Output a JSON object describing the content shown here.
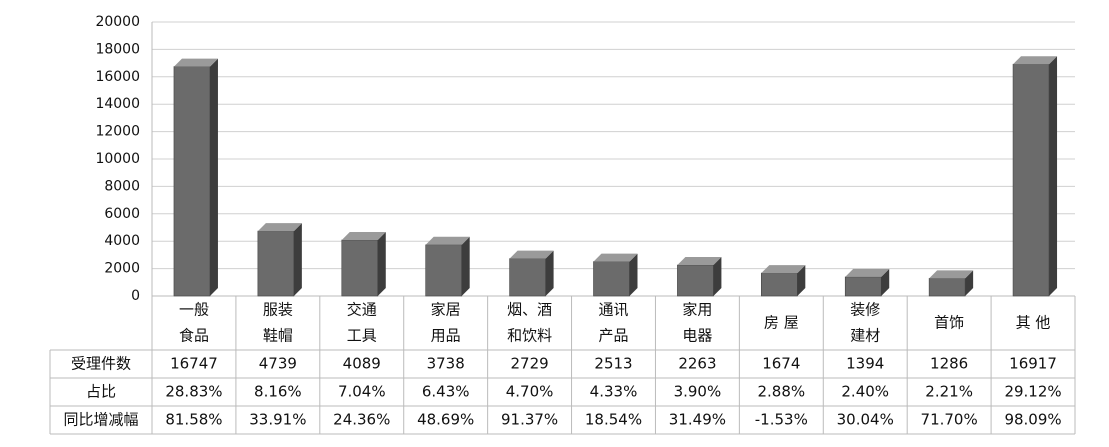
{
  "chart_data": {
    "type": "bar",
    "categories": [
      [
        "一般",
        "食品"
      ],
      [
        "服装",
        "鞋帽"
      ],
      [
        "交通",
        "工具"
      ],
      [
        "家居",
        "用品"
      ],
      [
        "烟、酒",
        "和饮料"
      ],
      [
        "通讯",
        "产品"
      ],
      [
        "家用",
        "电器"
      ],
      [
        "房 屋"
      ],
      [
        "装修",
        "建材"
      ],
      [
        "首饰"
      ],
      [
        "其 他"
      ]
    ],
    "series": [
      {
        "name": "受理件数",
        "color": "#6b6b6b",
        "values": [
          16747,
          4739,
          4089,
          3738,
          2729,
          2513,
          2263,
          1674,
          1394,
          1286,
          16917
        ]
      }
    ],
    "ylim": [
      0,
      20000
    ],
    "yticks": [
      0,
      2000,
      4000,
      6000,
      8000,
      10000,
      12000,
      14000,
      16000,
      18000,
      20000
    ],
    "grid": true,
    "table_rows": [
      {
        "label": "占比",
        "cells": [
          "28.83%",
          "8.16%",
          "7.04%",
          "6.43%",
          "4.70%",
          "4.33%",
          "3.90%",
          "2.88%",
          "2.40%",
          "2.21%",
          "29.12%"
        ]
      },
      {
        "label": "同比增减幅",
        "cells": [
          "81.58%",
          "33.91%",
          "24.36%",
          "48.69%",
          "91.37%",
          "18.54%",
          "31.49%",
          "-1.53%",
          "30.04%",
          "71.70%",
          "98.09%"
        ]
      }
    ]
  }
}
